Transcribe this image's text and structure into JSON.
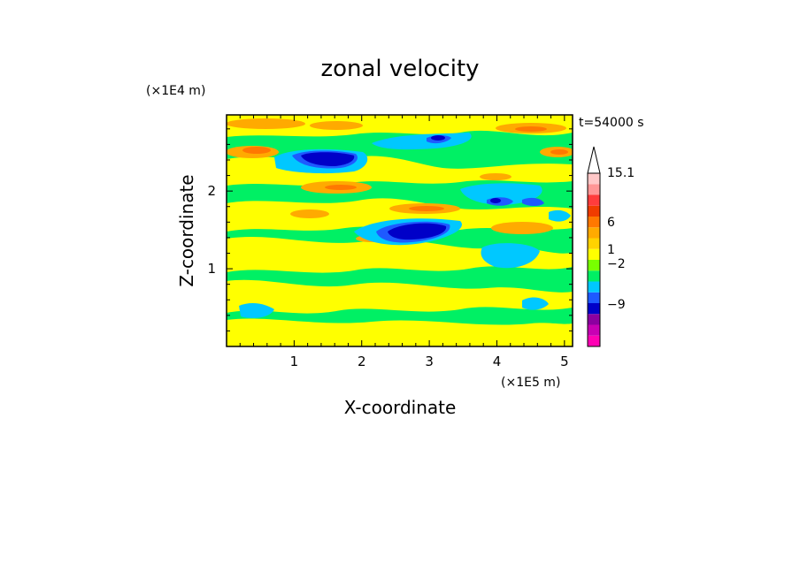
{
  "chart_data": {
    "type": "heatmap",
    "title": "zonal velocity",
    "xlabel": "X-coordinate",
    "ylabel": "Z-coordinate",
    "x_multiplier": "(×1E5 m)",
    "y_multiplier": "(×1E4 m)",
    "time_label": "t=54000 s",
    "xlim": [
      0,
      5.12
    ],
    "ylim": [
      0,
      2.98
    ],
    "x_ticks": [
      1,
      2,
      3,
      4,
      5
    ],
    "x_tick_labels": [
      "1",
      "2",
      "3",
      "4",
      "5"
    ],
    "y_ticks": [
      1,
      2
    ],
    "y_tick_labels": [
      "1",
      "2"
    ],
    "colorbar": {
      "label_values": [
        "15.1",
        "6",
        "1",
        "−2",
        "−9"
      ],
      "colors_bottom_to_top": [
        "#ff00b4",
        "#c800b4",
        "#8c00a0",
        "#0000c8",
        "#1e5aff",
        "#00c8ff",
        "#00f064",
        "#78ff00",
        "#ffff00",
        "#ffd200",
        "#ffaa00",
        "#ff7800",
        "#f03c00",
        "#ff3c3c",
        "#ff9696",
        "#ffc8c8"
      ],
      "overflow_color": "#ffffff"
    },
    "field_notes": "Contour-filled zonal velocity: mostly green/yellow background with orange bands and blue negative jets near z=2.4 (x 0.8-2.0), z=1.5 (x 2.2-3.3), z=2.0 (x 3.8-4.5)."
  }
}
